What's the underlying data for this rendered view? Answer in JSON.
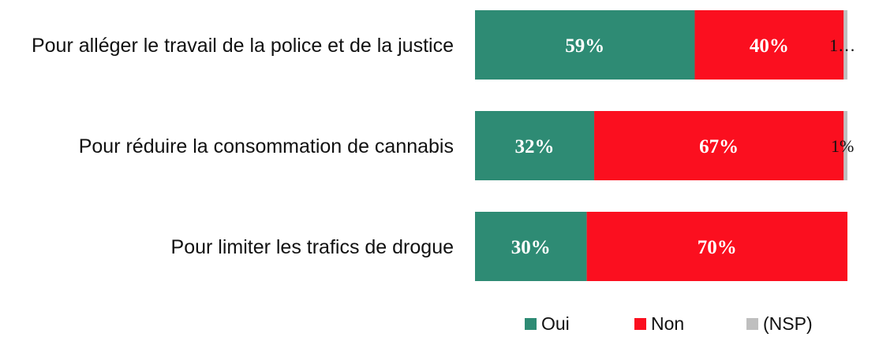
{
  "chart_data": {
    "type": "bar",
    "orientation": "horizontal",
    "stacked": true,
    "title": "",
    "xlabel": "",
    "ylabel": "",
    "xlim": [
      0,
      100
    ],
    "grid": false,
    "legend_position": "bottom-right",
    "categories": [
      "Pour alléger le travail de la police et de la justice",
      "Pour réduire la consommation de cannabis",
      "Pour limiter les trafics de drogue"
    ],
    "series": [
      {
        "name": "Oui",
        "color": "#2e8b74",
        "values": [
          59,
          32,
          30
        ],
        "labels": [
          "59%",
          "32%",
          "30%"
        ]
      },
      {
        "name": "Non",
        "color": "#fb0f1f",
        "values": [
          40,
          67,
          70
        ],
        "labels": [
          "40%",
          "67%",
          "70%"
        ]
      },
      {
        "name": "(NSP)",
        "color": "#bfbfbf",
        "values": [
          1,
          1,
          0
        ],
        "labels": [
          "1…",
          "1%",
          ""
        ]
      }
    ]
  }
}
